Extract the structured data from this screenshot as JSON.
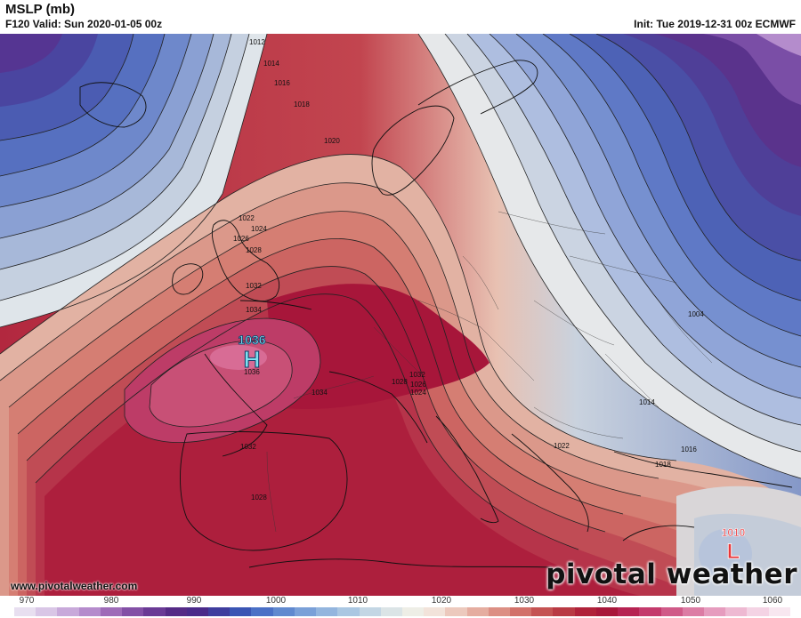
{
  "header": {
    "title": "MSLP (mb)",
    "valid": "F120 Valid: Sun 2020-01-05 00z",
    "init": "Init: Tue 2019-12-31 00z ECMWF"
  },
  "map": {
    "high_center": {
      "label": "H",
      "value": "1036"
    },
    "low_center": {
      "label": "L",
      "value": "1010"
    },
    "isobar_labels": [
      "1012",
      "1014",
      "1016",
      "1018",
      "1020",
      "1022",
      "1024",
      "1026",
      "1028",
      "1032",
      "1034",
      "1036",
      "1034",
      "1032",
      "1028",
      "1026",
      "1024",
      "1032",
      "1028",
      "1004",
      "1014",
      "1016",
      "1018",
      "1022"
    ]
  },
  "footer": {
    "url": "www.pivotalweather.com",
    "brand": "pivotal weather"
  },
  "colorbar": {
    "ticks": [
      "970",
      "980",
      "990",
      "1000",
      "1010",
      "1020",
      "1030",
      "1040",
      "1050",
      "1060"
    ],
    "colors": [
      "#e8dff0",
      "#d9c6e6",
      "#c8a9da",
      "#b58bcc",
      "#9e6bb8",
      "#8350a6",
      "#6a3a95",
      "#552a86",
      "#4a2a8a",
      "#3f3d9e",
      "#3a55b4",
      "#4a70c6",
      "#6089cf",
      "#7aa0d8",
      "#93b5de",
      "#aac7e2",
      "#c3d6e4",
      "#dbe4e6",
      "#eeeee6",
      "#f2e3da",
      "#ecc9bd",
      "#e5ada0",
      "#dc8f84",
      "#d2716a",
      "#c55353",
      "#b93a44",
      "#b0223a",
      "#a8173a",
      "#b62352",
      "#c43a6c",
      "#d05a88",
      "#dc7ca4",
      "#e69cbe",
      "#eeb9d2",
      "#f4d3e4",
      "#f8e7f0"
    ]
  }
}
